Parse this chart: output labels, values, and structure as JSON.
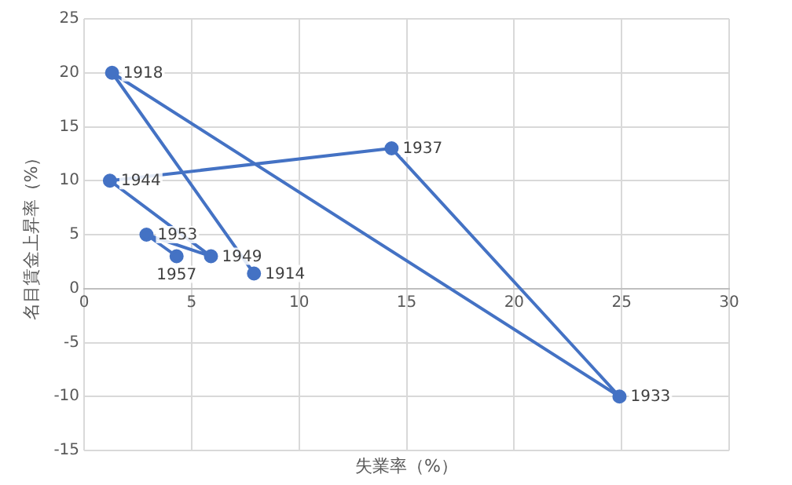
{
  "chart_data": {
    "type": "line",
    "xlabel": "失業率（%）",
    "ylabel": "名目賃金上昇率（%）",
    "x": [
      7.9,
      1.3,
      24.9,
      14.3,
      1.2,
      5.9,
      2.9,
      4.3
    ],
    "series": [
      {
        "color": "#4472c4",
        "values": [
          1.4,
          20,
          -10,
          13,
          10,
          3,
          5,
          3
        ]
      }
    ],
    "annotations": [
      {
        "text": "1914",
        "x": 7.9,
        "y": 1.4
      },
      {
        "text": "1918",
        "x": 1.3,
        "y": 20
      },
      {
        "text": "1933",
        "x": 24.9,
        "y": -10
      },
      {
        "text": "1937",
        "x": 14.3,
        "y": 13
      },
      {
        "text": "1944",
        "x": 1.2,
        "y": 10
      },
      {
        "text": "1949",
        "x": 5.9,
        "y": 3
      },
      {
        "text": "1953",
        "x": 2.9,
        "y": 5
      },
      {
        "text": "1957",
        "x": 4.3,
        "y": 3
      }
    ],
    "xlim": [
      0,
      30
    ],
    "xticks": [
      0,
      5,
      10,
      15,
      20,
      25,
      30
    ],
    "ylim": [
      -15,
      25
    ],
    "yticks": [
      -15,
      -10,
      -5,
      0,
      5,
      10,
      15,
      20,
      25
    ],
    "grid": true,
    "legend": false,
    "marker": "circle",
    "line_style": "solid"
  }
}
